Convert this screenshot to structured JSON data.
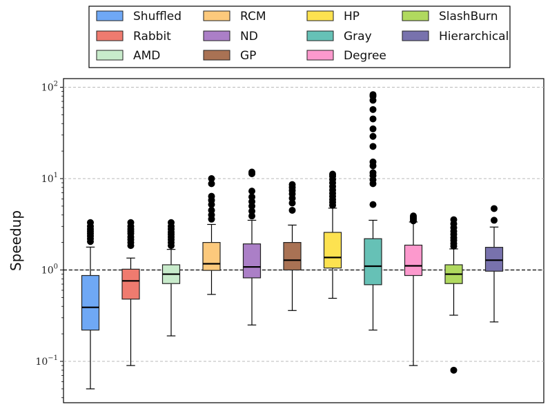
{
  "chart_data": {
    "type": "box",
    "title": "",
    "xlabel": "",
    "ylabel": "Speedup",
    "yscale": "log",
    "ylim": [
      0.04,
      110
    ],
    "yticks": [
      {
        "value": 0.1,
        "base": "10",
        "exp": "−1"
      },
      {
        "value": 1,
        "base": "10",
        "exp": "0"
      },
      {
        "value": 10,
        "base": "10",
        "exp": "1"
      },
      {
        "value": 100,
        "base": "10",
        "exp": "2"
      }
    ],
    "grid": "y-major-dashed",
    "reference_line": 1.0,
    "legend": {
      "placement": "top",
      "columns": 4
    },
    "series": [
      {
        "name": "Shuffled",
        "color": "#6fa8f5",
        "whisker_low": 0.05,
        "q1": 0.22,
        "median": 0.39,
        "q3": 0.87,
        "whisker_high": 1.78,
        "outliers": [
          2.05,
          2.2,
          2.35,
          2.5,
          2.65,
          2.8,
          3.0,
          3.3
        ]
      },
      {
        "name": "Rabbit",
        "color": "#ef7b6f",
        "whisker_low": 0.09,
        "q1": 0.48,
        "median": 0.76,
        "q3": 1.02,
        "whisker_high": 1.35,
        "outliers": [
          1.85,
          2.0,
          2.15,
          2.3,
          2.5,
          2.65,
          2.8,
          3.0,
          3.3
        ]
      },
      {
        "name": "AMD",
        "color": "#c8ebcb",
        "whisker_low": 0.19,
        "q1": 0.71,
        "median": 0.9,
        "q3": 1.14,
        "whisker_high": 1.68,
        "outliers": [
          1.85,
          2.0,
          2.15,
          2.3,
          2.45,
          2.6,
          2.8,
          3.0,
          3.3
        ]
      },
      {
        "name": "RCM",
        "color": "#fcc97c",
        "whisker_low": 0.54,
        "q1": 0.99,
        "median": 1.17,
        "q3": 2.0,
        "whisker_high": 3.15,
        "outliers": [
          3.6,
          4.0,
          4.5,
          5.2,
          5.8,
          6.4,
          8.8,
          10.0
        ]
      },
      {
        "name": "ND",
        "color": "#ab7fc7",
        "whisker_low": 0.25,
        "q1": 0.82,
        "median": 1.08,
        "q3": 1.93,
        "whisker_high": 3.5,
        "outliers": [
          3.9,
          4.4,
          5.0,
          5.6,
          6.3,
          7.3,
          11.3,
          11.8
        ]
      },
      {
        "name": "GP",
        "color": "#a97254",
        "whisker_low": 0.36,
        "q1": 1.0,
        "median": 1.28,
        "q3": 2.0,
        "whisker_high": 3.1,
        "outliers": [
          4.5,
          5.4,
          6.1,
          6.8,
          7.4,
          8.0,
          8.6
        ]
      },
      {
        "name": "HP",
        "color": "#fde250",
        "whisker_low": 0.49,
        "q1": 1.05,
        "median": 1.37,
        "q3": 2.58,
        "whisker_high": 4.75,
        "outliers": [
          5.1,
          5.5,
          5.9,
          6.4,
          6.9,
          7.5,
          8.2,
          9.0,
          9.8,
          10.6,
          11.2
        ]
      },
      {
        "name": "Gray",
        "color": "#66c1b6",
        "whisker_low": 0.22,
        "q1": 0.69,
        "median": 1.1,
        "q3": 2.2,
        "whisker_high": 3.5,
        "outliers": [
          5.2,
          8.8,
          9.7,
          10.8,
          11.6,
          13.8,
          15.2,
          22.5,
          29.0,
          35.0,
          45.0,
          57.0,
          72.0,
          80.0,
          83.0
        ]
      },
      {
        "name": "Degree",
        "color": "#fc99cd",
        "whisker_low": 0.09,
        "q1": 0.87,
        "median": 1.11,
        "q3": 1.87,
        "whisker_high": 3.35,
        "outliers": [
          3.45,
          3.6,
          3.75,
          3.9
        ]
      },
      {
        "name": "SlashBurn",
        "color": "#b0d95f",
        "whisker_low": 0.32,
        "q1": 0.71,
        "median": 0.9,
        "q3": 1.14,
        "whisker_high": 1.7,
        "outliers": [
          0.08,
          1.82,
          1.95,
          2.1,
          2.25,
          2.45,
          2.65,
          2.9,
          3.2,
          3.55
        ]
      },
      {
        "name": "Hierarchical",
        "color": "#7872ad",
        "whisker_low": 0.27,
        "q1": 0.97,
        "median": 1.28,
        "q3": 1.77,
        "whisker_high": 2.95,
        "outliers": [
          3.5,
          4.7
        ]
      }
    ]
  }
}
